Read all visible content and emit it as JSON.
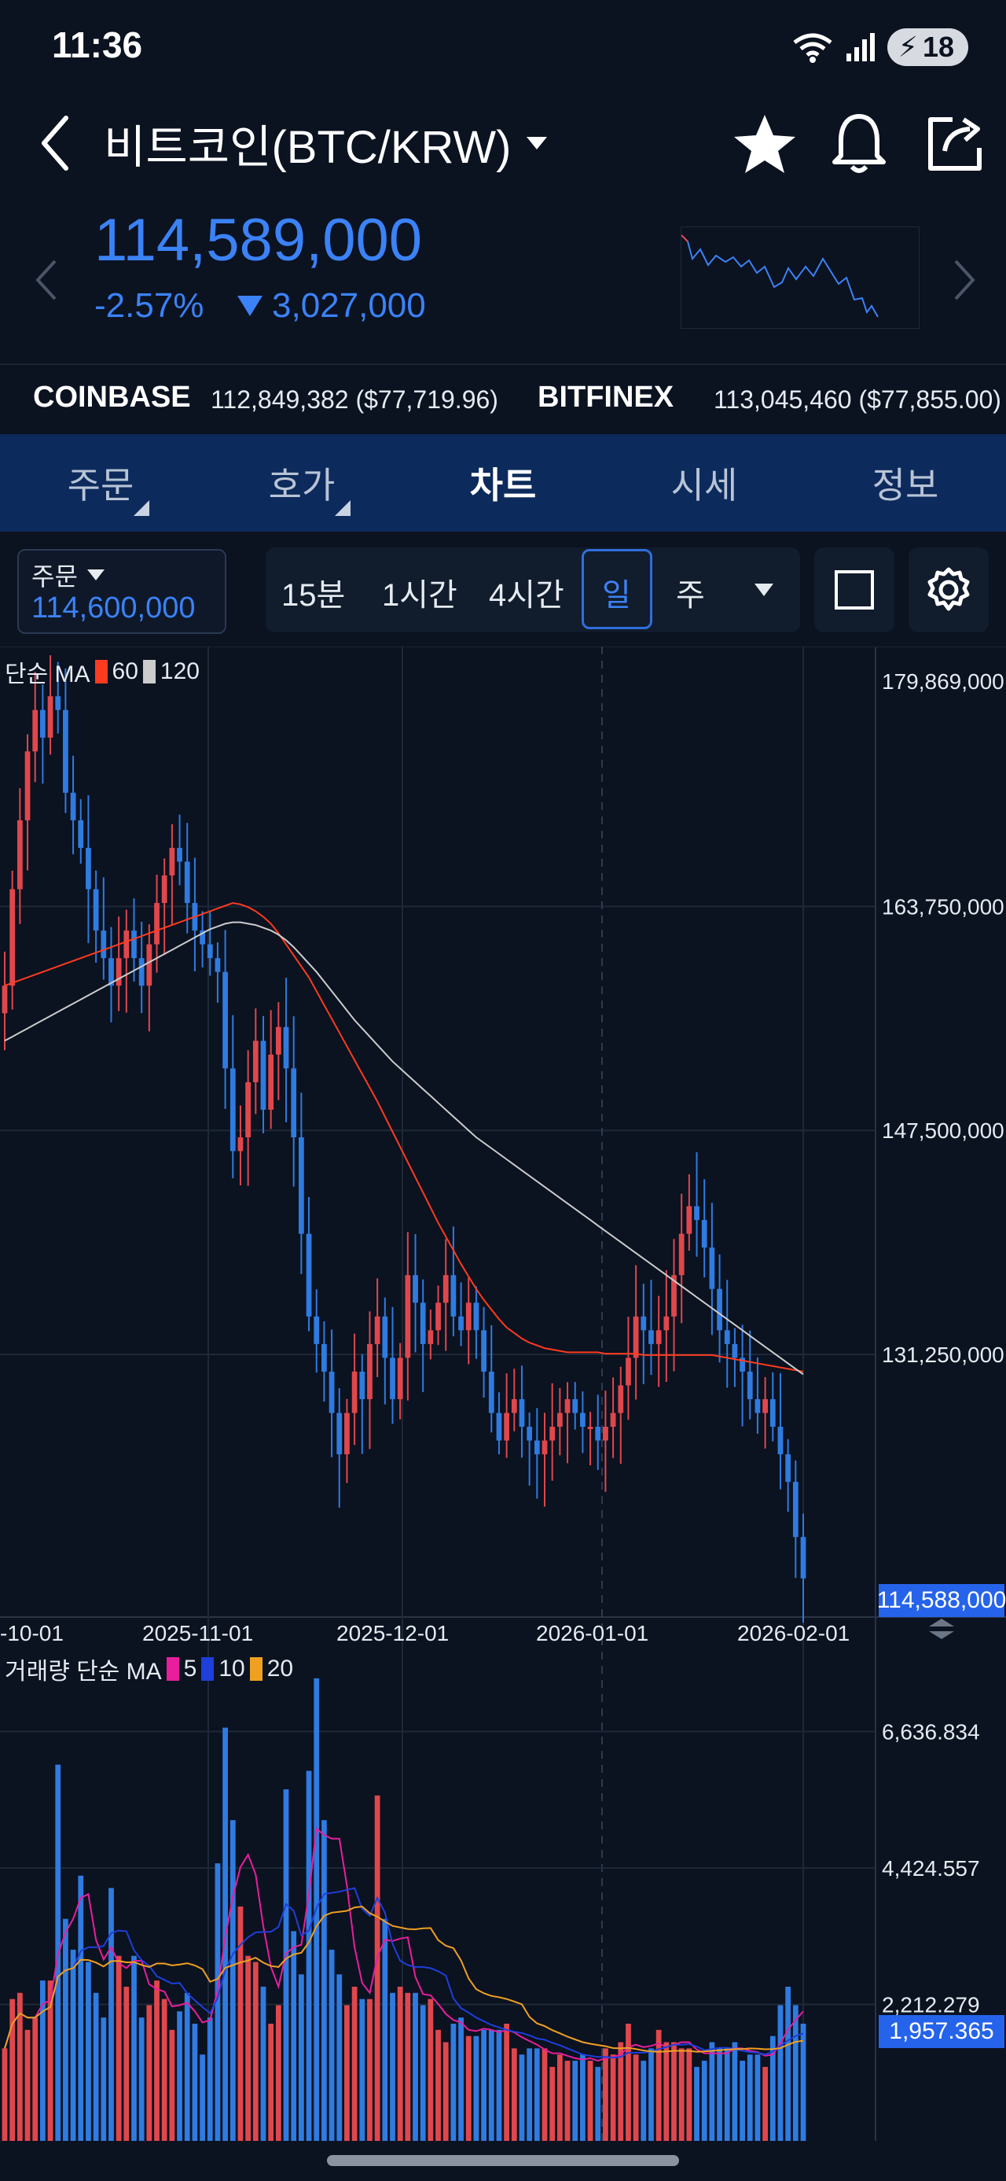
{
  "status_bar": {
    "time": "11:36",
    "battery": "18"
  },
  "header": {
    "title": "비트코인(BTC/KRW)"
  },
  "ticker": {
    "price": "114,589,000",
    "change_pct": "-2.57%",
    "change_abs": "3,027,000"
  },
  "exchanges": [
    {
      "name": "COINBASE",
      "value": "112,849,382 ($77,719.96)"
    },
    {
      "name": "BITFINEX",
      "value": "113,045,460 ($77,855.00)"
    }
  ],
  "tabs": [
    {
      "label": "주문",
      "active": false,
      "has_corner": true
    },
    {
      "label": "호가",
      "active": false,
      "has_corner": true
    },
    {
      "label": "차트",
      "active": true,
      "has_corner": false
    },
    {
      "label": "시세",
      "active": false,
      "has_corner": false
    },
    {
      "label": "정보",
      "active": false,
      "has_corner": false
    }
  ],
  "order_box": {
    "label": "주문",
    "value": "114,600,000"
  },
  "intervals": [
    "15분",
    "1시간",
    "4시간",
    "일",
    "주"
  ],
  "active_interval": "일",
  "ma_legend": {
    "prefix": "단순 MA",
    "periods": [
      "60",
      "120"
    ],
    "colors": [
      "#ff3b1f",
      "#cccccc"
    ]
  },
  "volume_legend": {
    "prefix": "거래량 단순 MA",
    "periods": [
      "5",
      "10",
      "20"
    ],
    "colors": [
      "#e91e9c",
      "#1e3fdc",
      "#f0a020"
    ]
  },
  "colors": {
    "up": "#e0474c",
    "down": "#2f7be0",
    "accent": "#3b82f6",
    "tab_bg": "#0d2a5c"
  },
  "chart_data": {
    "type": "candlestick",
    "x_labels": [
      "-10-01",
      "2025-11-01",
      "2025-12-01",
      "2026-01-01",
      "2026-02-01"
    ],
    "y_labels": [
      "179,869,000",
      "163,750,000",
      "147,500,000",
      "131,250,000"
    ],
    "last_price": "114,588,000",
    "ylim": [
      114588000,
      179869000
    ],
    "close": [
      158,
      165,
      170,
      175,
      178,
      176,
      179,
      178,
      172,
      170,
      168,
      165,
      162,
      160,
      158,
      160,
      162,
      160,
      158,
      161,
      164,
      166,
      168,
      167,
      164,
      162,
      161,
      160,
      159,
      152,
      146,
      147,
      151,
      154,
      149,
      153,
      155,
      152,
      147,
      140,
      134,
      132,
      130,
      127,
      124,
      127,
      130,
      128,
      132,
      134,
      131,
      128,
      131,
      137,
      135,
      132,
      133,
      135,
      137,
      134,
      133,
      135,
      133,
      130,
      127,
      125,
      127,
      128,
      126,
      125,
      124,
      125,
      126,
      127,
      128,
      127,
      126,
      126,
      125,
      126,
      127,
      129,
      131,
      134,
      133,
      132,
      133,
      134,
      137,
      140,
      142,
      141,
      139,
      136,
      133,
      132,
      131,
      130,
      128,
      127,
      128,
      126,
      124,
      122,
      118,
      115
    ],
    "ma60": [
      158.0,
      158.2,
      158.4,
      158.6,
      158.8,
      159.0,
      159.2,
      159.4,
      159.6,
      159.8,
      160.0,
      160.2,
      160.4,
      160.6,
      160.8,
      161.0,
      161.2,
      161.4,
      161.6,
      161.8,
      162.0,
      162.2,
      162.4,
      162.6,
      162.8,
      163.0,
      163.2,
      163.4,
      163.6,
      163.8,
      164.0,
      163.9,
      163.7,
      163.4,
      163.0,
      162.5,
      161.8,
      161.0,
      160.2,
      159.4,
      158.6,
      157.6,
      156.6,
      155.6,
      154.6,
      153.6,
      152.6,
      151.6,
      150.6,
      149.6,
      148.5,
      147.4,
      146.3,
      145.2,
      144.1,
      143.0,
      141.9,
      140.8,
      139.8,
      138.8,
      137.8,
      136.9,
      136.0,
      135.2,
      134.5,
      133.8,
      133.2,
      132.8,
      132.4,
      132.1,
      131.9,
      131.7,
      131.6,
      131.5,
      131.4,
      131.4,
      131.4,
      131.4,
      131.4,
      131.3,
      131.3,
      131.3,
      131.3,
      131.3,
      131.2,
      131.2,
      131.2,
      131.2,
      131.2,
      131.2,
      131.2,
      131.2,
      131.2,
      131.2,
      131.1,
      131.0,
      130.9,
      130.8,
      130.7,
      130.6,
      130.5,
      130.4,
      130.3,
      130.2,
      130.1,
      130.0
    ],
    "ma120": [
      154.0,
      154.3,
      154.6,
      154.9,
      155.2,
      155.5,
      155.8,
      156.1,
      156.4,
      156.7,
      157.0,
      157.3,
      157.6,
      157.9,
      158.2,
      158.5,
      158.8,
      159.1,
      159.4,
      159.7,
      160.0,
      160.3,
      160.6,
      160.9,
      161.2,
      161.5,
      161.8,
      162.1,
      162.3,
      162.5,
      162.6,
      162.6,
      162.5,
      162.4,
      162.2,
      162.0,
      161.7,
      161.3,
      160.8,
      160.2,
      159.6,
      159.0,
      158.3,
      157.6,
      156.9,
      156.2,
      155.5,
      154.9,
      154.3,
      153.7,
      153.1,
      152.5,
      152.0,
      151.5,
      151.0,
      150.5,
      150.0,
      149.5,
      149.0,
      148.5,
      148.0,
      147.5,
      147.0,
      146.6,
      146.2,
      145.8,
      145.4,
      145.0,
      144.6,
      144.2,
      143.8,
      143.4,
      143.0,
      142.6,
      142.2,
      141.8,
      141.4,
      141.0,
      140.6,
      140.2,
      139.8,
      139.4,
      139.0,
      138.6,
      138.2,
      137.8,
      137.4,
      137.0,
      136.6,
      136.2,
      135.8,
      135.4,
      135.0,
      134.6,
      134.2,
      133.8,
      133.4,
      133.0,
      132.6,
      132.2,
      131.8,
      131.4,
      131.0,
      130.6,
      130.2,
      129.8
    ],
    "volume_labels": [
      "6,636.834",
      "4,424.557",
      "2,212.279"
    ],
    "last_volume": "1,957.365",
    "volume": [
      1.5,
      2.3,
      2.4,
      1.8,
      2.0,
      2.6,
      2.6,
      6.1,
      3.6,
      3.1,
      4.3,
      2.9,
      2.4,
      2.0,
      4.1,
      3.0,
      2.5,
      3.0,
      2.0,
      2.2,
      2.6,
      2.3,
      1.8,
      2.1,
      2.4,
      1.9,
      1.4,
      2.0,
      4.5,
      6.7,
      5.2,
      3.8,
      3.0,
      2.9,
      2.5,
      1.9,
      2.2,
      5.7,
      3.4,
      2.7,
      6.0,
      7.5,
      5.2,
      3.1,
      2.7,
      2.2,
      2.5,
      2.3,
      2.3,
      5.6,
      3.6,
      2.4,
      2.5,
      2.4,
      2.4,
      2.2,
      2.3,
      1.8,
      1.6,
      1.9,
      2.0,
      1.7,
      1.7,
      1.8,
      1.8,
      1.8,
      1.9,
      1.5,
      1.4,
      1.5,
      1.5,
      1.5,
      1.2,
      1.4,
      1.3,
      1.3,
      1.4,
      1.3,
      1.2,
      1.5,
      1.4,
      1.6,
      1.9,
      1.4,
      1.3,
      1.5,
      1.8,
      1.6,
      1.6,
      1.5,
      1.5,
      1.2,
      1.3,
      1.6,
      1.5,
      1.5,
      1.6,
      1.3,
      1.4,
      1.4,
      1.2,
      1.7,
      2.2,
      2.5,
      2.2,
      1.9
    ]
  }
}
